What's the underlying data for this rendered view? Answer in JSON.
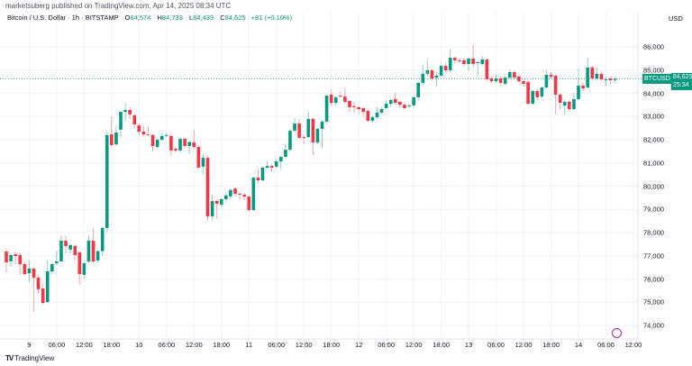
{
  "publisher_line": "marketsuberg published on TradingView.com, Apr 14, 2025 08:34 UTC",
  "legend": {
    "symbol_desc": "Bitcoin / U.S. Dollar · 1h · BITSTAMP",
    "o_label": "O",
    "o": "84,574",
    "h_label": "H",
    "h": "84,733",
    "l_label": "L",
    "l": "84,439",
    "c_label": "C",
    "c": "84,625",
    "change": "+81 (+0.10%)"
  },
  "currency": "USD",
  "price_tag": {
    "symbol": "BTCUSD",
    "price": "84,625",
    "countdown": "25:34"
  },
  "logo_text": "TradingView",
  "colors": {
    "up": "#089981",
    "down": "#F23645",
    "grid": "#f0f3fa",
    "events": "#9c27b0"
  },
  "icons": {
    "logo": "tradingview-logo-icon",
    "events": "events-icon"
  },
  "chart_data": {
    "type": "candlestick",
    "symbol": "BTCUSD",
    "interval": "1h",
    "ylim": [
      73500,
      86500
    ],
    "grid": true,
    "y_ticks": [
      "86,000",
      "85,000",
      "84,000",
      "83,000",
      "82,000",
      "81,000",
      "80,000",
      "79,000",
      "78,000",
      "77,000",
      "76,000",
      "75,000",
      "74,000"
    ],
    "x_ticks": [
      "9",
      "06:00",
      "12:00",
      "18:00",
      "10",
      "06:00",
      "12:00",
      "18:00",
      "11",
      "06:00",
      "12:00",
      "18:00",
      "12",
      "06:00",
      "12:00",
      "18:00",
      "13",
      "06:00",
      "12:00",
      "18:00",
      "14",
      "06:00",
      "12:00"
    ],
    "candle_columns": [
      "time",
      "open",
      "high",
      "low",
      "close"
    ],
    "candles": [
      [
        "Apr 8 19:00",
        77185,
        77300,
        76250,
        76720
      ],
      [
        "Apr 8 20:00",
        76760,
        77100,
        76530,
        77030
      ],
      [
        "Apr 8 21:00",
        77070,
        77180,
        76640,
        76990
      ],
      [
        "Apr 8 22:00",
        77030,
        77100,
        76180,
        76640
      ],
      [
        "Apr 8 23:00",
        76640,
        76700,
        76180,
        76210
      ],
      [
        "Apr 9 00:00",
        76250,
        76800,
        75870,
        76450
      ],
      [
        "Apr 9 01:00",
        76450,
        76500,
        74580,
        76060
      ],
      [
        "Apr 9 02:00",
        76060,
        76150,
        75400,
        75560
      ],
      [
        "Apr 9 03:00",
        75590,
        75790,
        74900,
        74970
      ],
      [
        "Apr 9 04:00",
        75010,
        76800,
        74950,
        76330
      ],
      [
        "Apr 9 05:00",
        76330,
        76700,
        76200,
        76640
      ],
      [
        "Apr 9 06:00",
        76680,
        77220,
        76600,
        76760
      ],
      [
        "Apr 9 07:00",
        76760,
        77880,
        76700,
        77650
      ],
      [
        "Apr 9 08:00",
        77650,
        77880,
        77100,
        77420
      ],
      [
        "Apr 9 09:00",
        77265,
        77500,
        77100,
        77460
      ],
      [
        "Apr 9 10:00",
        77420,
        77500,
        76800,
        77030
      ],
      [
        "Apr 9 11:00",
        77150,
        77200,
        75750,
        76210
      ],
      [
        "Apr 9 12:00",
        76180,
        76750,
        76000,
        76680
      ],
      [
        "Apr 9 13:00",
        76760,
        77880,
        76700,
        77650
      ],
      [
        "Apr 9 14:00",
        77650,
        78200,
        76700,
        76760
      ],
      [
        "Apr 9 15:00",
        76800,
        77250,
        76700,
        77200
      ],
      [
        "Apr 9 16:00",
        77200,
        78250,
        77000,
        78200
      ],
      [
        "Apr 9 17:00",
        78200,
        82300,
        78000,
        82200
      ],
      [
        "Apr 9 18:00",
        82230,
        83000,
        81700,
        81770
      ],
      [
        "Apr 9 19:00",
        81800,
        82600,
        81750,
        82310
      ],
      [
        "Apr 9 20:00",
        82430,
        83300,
        82080,
        83200
      ],
      [
        "Apr 9 21:00",
        83200,
        83590,
        82800,
        83280
      ],
      [
        "Apr 9 22:00",
        83280,
        83400,
        82900,
        83090
      ],
      [
        "Apr 9 23:00",
        83050,
        83150,
        82500,
        82660
      ],
      [
        "Apr 10 00:00",
        82620,
        82700,
        82200,
        82350
      ],
      [
        "Apr 10 01:00",
        82350,
        82600,
        82150,
        82230
      ],
      [
        "Apr 10 02:00",
        82230,
        82550,
        82150,
        82200
      ],
      [
        "Apr 10 03:00",
        82200,
        82250,
        81500,
        81730
      ],
      [
        "Apr 10 04:00",
        81690,
        82050,
        81600,
        82000
      ],
      [
        "Apr 10 05:00",
        82000,
        82300,
        81950,
        82160
      ],
      [
        "Apr 10 06:00",
        82160,
        82300,
        82100,
        82200
      ],
      [
        "Apr 10 07:00",
        82160,
        82250,
        81300,
        81540
      ],
      [
        "Apr 10 08:00",
        81610,
        81700,
        81450,
        81540
      ],
      [
        "Apr 10 09:00",
        81540,
        82100,
        81450,
        82040
      ],
      [
        "Apr 10 10:00",
        82040,
        82100,
        81650,
        81730
      ],
      [
        "Apr 10 11:00",
        81730,
        81950,
        81400,
        81900
      ],
      [
        "Apr 10 12:00",
        81880,
        82430,
        81600,
        81690
      ],
      [
        "Apr 10 13:00",
        81690,
        81750,
        80750,
        80800
      ],
      [
        "Apr 10 14:00",
        80840,
        81400,
        80500,
        81220
      ],
      [
        "Apr 10 15:00",
        81220,
        81300,
        78500,
        78700
      ],
      [
        "Apr 10 16:00",
        78700,
        79630,
        78500,
        79360
      ],
      [
        "Apr 10 17:00",
        79360,
        79450,
        78600,
        79240
      ],
      [
        "Apr 10 18:00",
        79200,
        79500,
        79100,
        79440
      ],
      [
        "Apr 10 19:00",
        79440,
        79700,
        79350,
        79600
      ],
      [
        "Apr 10 20:00",
        79560,
        79900,
        79450,
        79830
      ],
      [
        "Apr 10 21:00",
        79900,
        79950,
        79550,
        79670
      ],
      [
        "Apr 10 22:00",
        79670,
        79750,
        79400,
        79630
      ],
      [
        "Apr 10 23:00",
        79630,
        79700,
        79400,
        79550
      ],
      [
        "Apr 11 00:00",
        79550,
        79600,
        78900,
        78970
      ],
      [
        "Apr 11 01:00",
        78970,
        80400,
        78950,
        80370
      ],
      [
        "Apr 11 02:00",
        80370,
        80760,
        80100,
        80250
      ],
      [
        "Apr 11 03:00",
        80250,
        80850,
        80200,
        80800
      ],
      [
        "Apr 11 04:00",
        80800,
        81100,
        80750,
        80870
      ],
      [
        "Apr 11 05:00",
        80870,
        80950,
        80600,
        80800
      ],
      [
        "Apr 11 06:00",
        80840,
        81150,
        80800,
        81070
      ],
      [
        "Apr 11 07:00",
        81070,
        81300,
        80700,
        81260
      ],
      [
        "Apr 11 08:00",
        81260,
        81840,
        81200,
        81570
      ],
      [
        "Apr 11 09:00",
        81570,
        82450,
        81500,
        82390
      ],
      [
        "Apr 11 10:00",
        82390,
        82930,
        82300,
        82700
      ],
      [
        "Apr 11 11:00",
        82700,
        82900,
        82000,
        82080
      ],
      [
        "Apr 11 12:00",
        82120,
        82200,
        81800,
        82080
      ],
      [
        "Apr 11 13:00",
        82120,
        83240,
        82050,
        82900
      ],
      [
        "Apr 11 14:00",
        82900,
        82950,
        81340,
        81880
      ],
      [
        "Apr 11 15:00",
        81880,
        82500,
        81800,
        82470
      ],
      [
        "Apr 11 16:00",
        82470,
        82850,
        81650,
        82780
      ],
      [
        "Apr 11 17:00",
        82780,
        83950,
        82700,
        83900
      ],
      [
        "Apr 11 18:00",
        83940,
        84170,
        83500,
        83590
      ],
      [
        "Apr 11 19:00",
        83590,
        83900,
        83500,
        83830
      ],
      [
        "Apr 11 20:00",
        83900,
        84060,
        83800,
        83860
      ],
      [
        "Apr 11 21:00",
        83860,
        84250,
        83550,
        83630
      ],
      [
        "Apr 11 22:00",
        83670,
        83700,
        83200,
        83400
      ],
      [
        "Apr 11 23:00",
        83450,
        83590,
        83170,
        83400
      ],
      [
        "Apr 12 00:00",
        83400,
        83450,
        83100,
        83320
      ],
      [
        "Apr 12 01:00",
        83360,
        83400,
        83000,
        83200
      ],
      [
        "Apr 12 02:00",
        83240,
        83300,
        82750,
        82820
      ],
      [
        "Apr 12 03:00",
        82820,
        83050,
        82750,
        82970
      ],
      [
        "Apr 12 04:00",
        82970,
        83400,
        82900,
        83170
      ],
      [
        "Apr 12 05:00",
        83170,
        83400,
        83100,
        83320
      ],
      [
        "Apr 12 06:00",
        83360,
        83700,
        83300,
        83550
      ],
      [
        "Apr 12 07:00",
        83550,
        83800,
        83450,
        83710
      ],
      [
        "Apr 12 08:00",
        83750,
        84020,
        83550,
        83590
      ],
      [
        "Apr 12 09:00",
        83630,
        83700,
        83400,
        83510
      ],
      [
        "Apr 12 10:00",
        83510,
        83600,
        83300,
        83360
      ],
      [
        "Apr 12 11:00",
        83440,
        83550,
        83350,
        83480
      ],
      [
        "Apr 12 12:00",
        83480,
        83900,
        83400,
        83830
      ],
      [
        "Apr 12 13:00",
        83830,
        84500,
        83700,
        84450
      ],
      [
        "Apr 12 14:00",
        84450,
        85220,
        84350,
        84840
      ],
      [
        "Apr 12 15:00",
        84840,
        85420,
        84750,
        84990
      ],
      [
        "Apr 12 16:00",
        84990,
        85050,
        84550,
        84640
      ],
      [
        "Apr 12 17:00",
        84680,
        84900,
        84300,
        84760
      ],
      [
        "Apr 12 18:00",
        84760,
        85250,
        84700,
        85180
      ],
      [
        "Apr 12 19:00",
        85180,
        85300,
        84900,
        84990
      ],
      [
        "Apr 12 20:00",
        84990,
        85920,
        84900,
        85530
      ],
      [
        "Apr 12 21:00",
        85530,
        85600,
        85300,
        85420
      ],
      [
        "Apr 12 22:00",
        85420,
        85500,
        85300,
        85380
      ],
      [
        "Apr 12 23:00",
        85420,
        85500,
        85150,
        85260
      ],
      [
        "Apr 13 00:00",
        85260,
        85550,
        85000,
        85500
      ],
      [
        "Apr 13 01:00",
        85500,
        86080,
        85150,
        85260
      ],
      [
        "Apr 13 02:00",
        85300,
        85400,
        84760,
        85340
      ],
      [
        "Apr 13 03:00",
        85260,
        85600,
        85200,
        85460
      ],
      [
        "Apr 13 04:00",
        85460,
        85500,
        84550,
        84600
      ],
      [
        "Apr 13 05:00",
        84640,
        84700,
        84450,
        84520
      ],
      [
        "Apr 13 06:00",
        84520,
        84800,
        84450,
        84640
      ],
      [
        "Apr 13 07:00",
        84640,
        84750,
        84350,
        84450
      ],
      [
        "Apr 13 08:00",
        84410,
        84750,
        84350,
        84680
      ],
      [
        "Apr 13 09:00",
        84680,
        85000,
        84600,
        84910
      ],
      [
        "Apr 13 10:00",
        84910,
        84950,
        84600,
        84680
      ],
      [
        "Apr 13 11:00",
        84720,
        84800,
        84450,
        84520
      ],
      [
        "Apr 13 12:00",
        84520,
        84600,
        84300,
        84410
      ],
      [
        "Apr 13 13:00",
        84490,
        84550,
        83500,
        83550
      ],
      [
        "Apr 13 14:00",
        83550,
        84150,
        83500,
        84100
      ],
      [
        "Apr 13 15:00",
        84100,
        84200,
        83700,
        83830
      ],
      [
        "Apr 13 16:00",
        83860,
        84300,
        83800,
        84250
      ],
      [
        "Apr 13 17:00",
        84250,
        84990,
        84200,
        84800
      ],
      [
        "Apr 13 18:00",
        84800,
        84900,
        84650,
        84720
      ],
      [
        "Apr 13 19:00",
        84760,
        84800,
        83090,
        83940
      ],
      [
        "Apr 13 20:00",
        83940,
        84000,
        83300,
        83590
      ],
      [
        "Apr 13 21:00",
        83470,
        83700,
        83090,
        83630
      ],
      [
        "Apr 13 22:00",
        83630,
        83700,
        83250,
        83320
      ],
      [
        "Apr 13 23:00",
        83320,
        84020,
        83250,
        83750
      ],
      [
        "Apr 14 00:00",
        83750,
        85070,
        83700,
        84330
      ],
      [
        "Apr 14 01:00",
        84330,
        84450,
        84100,
        84210
      ],
      [
        "Apr 14 02:00",
        84250,
        85530,
        84200,
        85110
      ],
      [
        "Apr 14 03:00",
        85110,
        85200,
        84550,
        84640
      ],
      [
        "Apr 14 04:00",
        84640,
        85100,
        84550,
        84840
      ],
      [
        "Apr 14 05:00",
        84840,
        84950,
        84500,
        84600
      ],
      [
        "Apr 14 06:00",
        84560,
        84700,
        84300,
        84600
      ],
      [
        "Apr 14 07:00",
        84640,
        84750,
        84400,
        84560
      ],
      [
        "Apr 14 08:00",
        84574,
        84733,
        84439,
        84625
      ]
    ],
    "last_price": 84625
  }
}
